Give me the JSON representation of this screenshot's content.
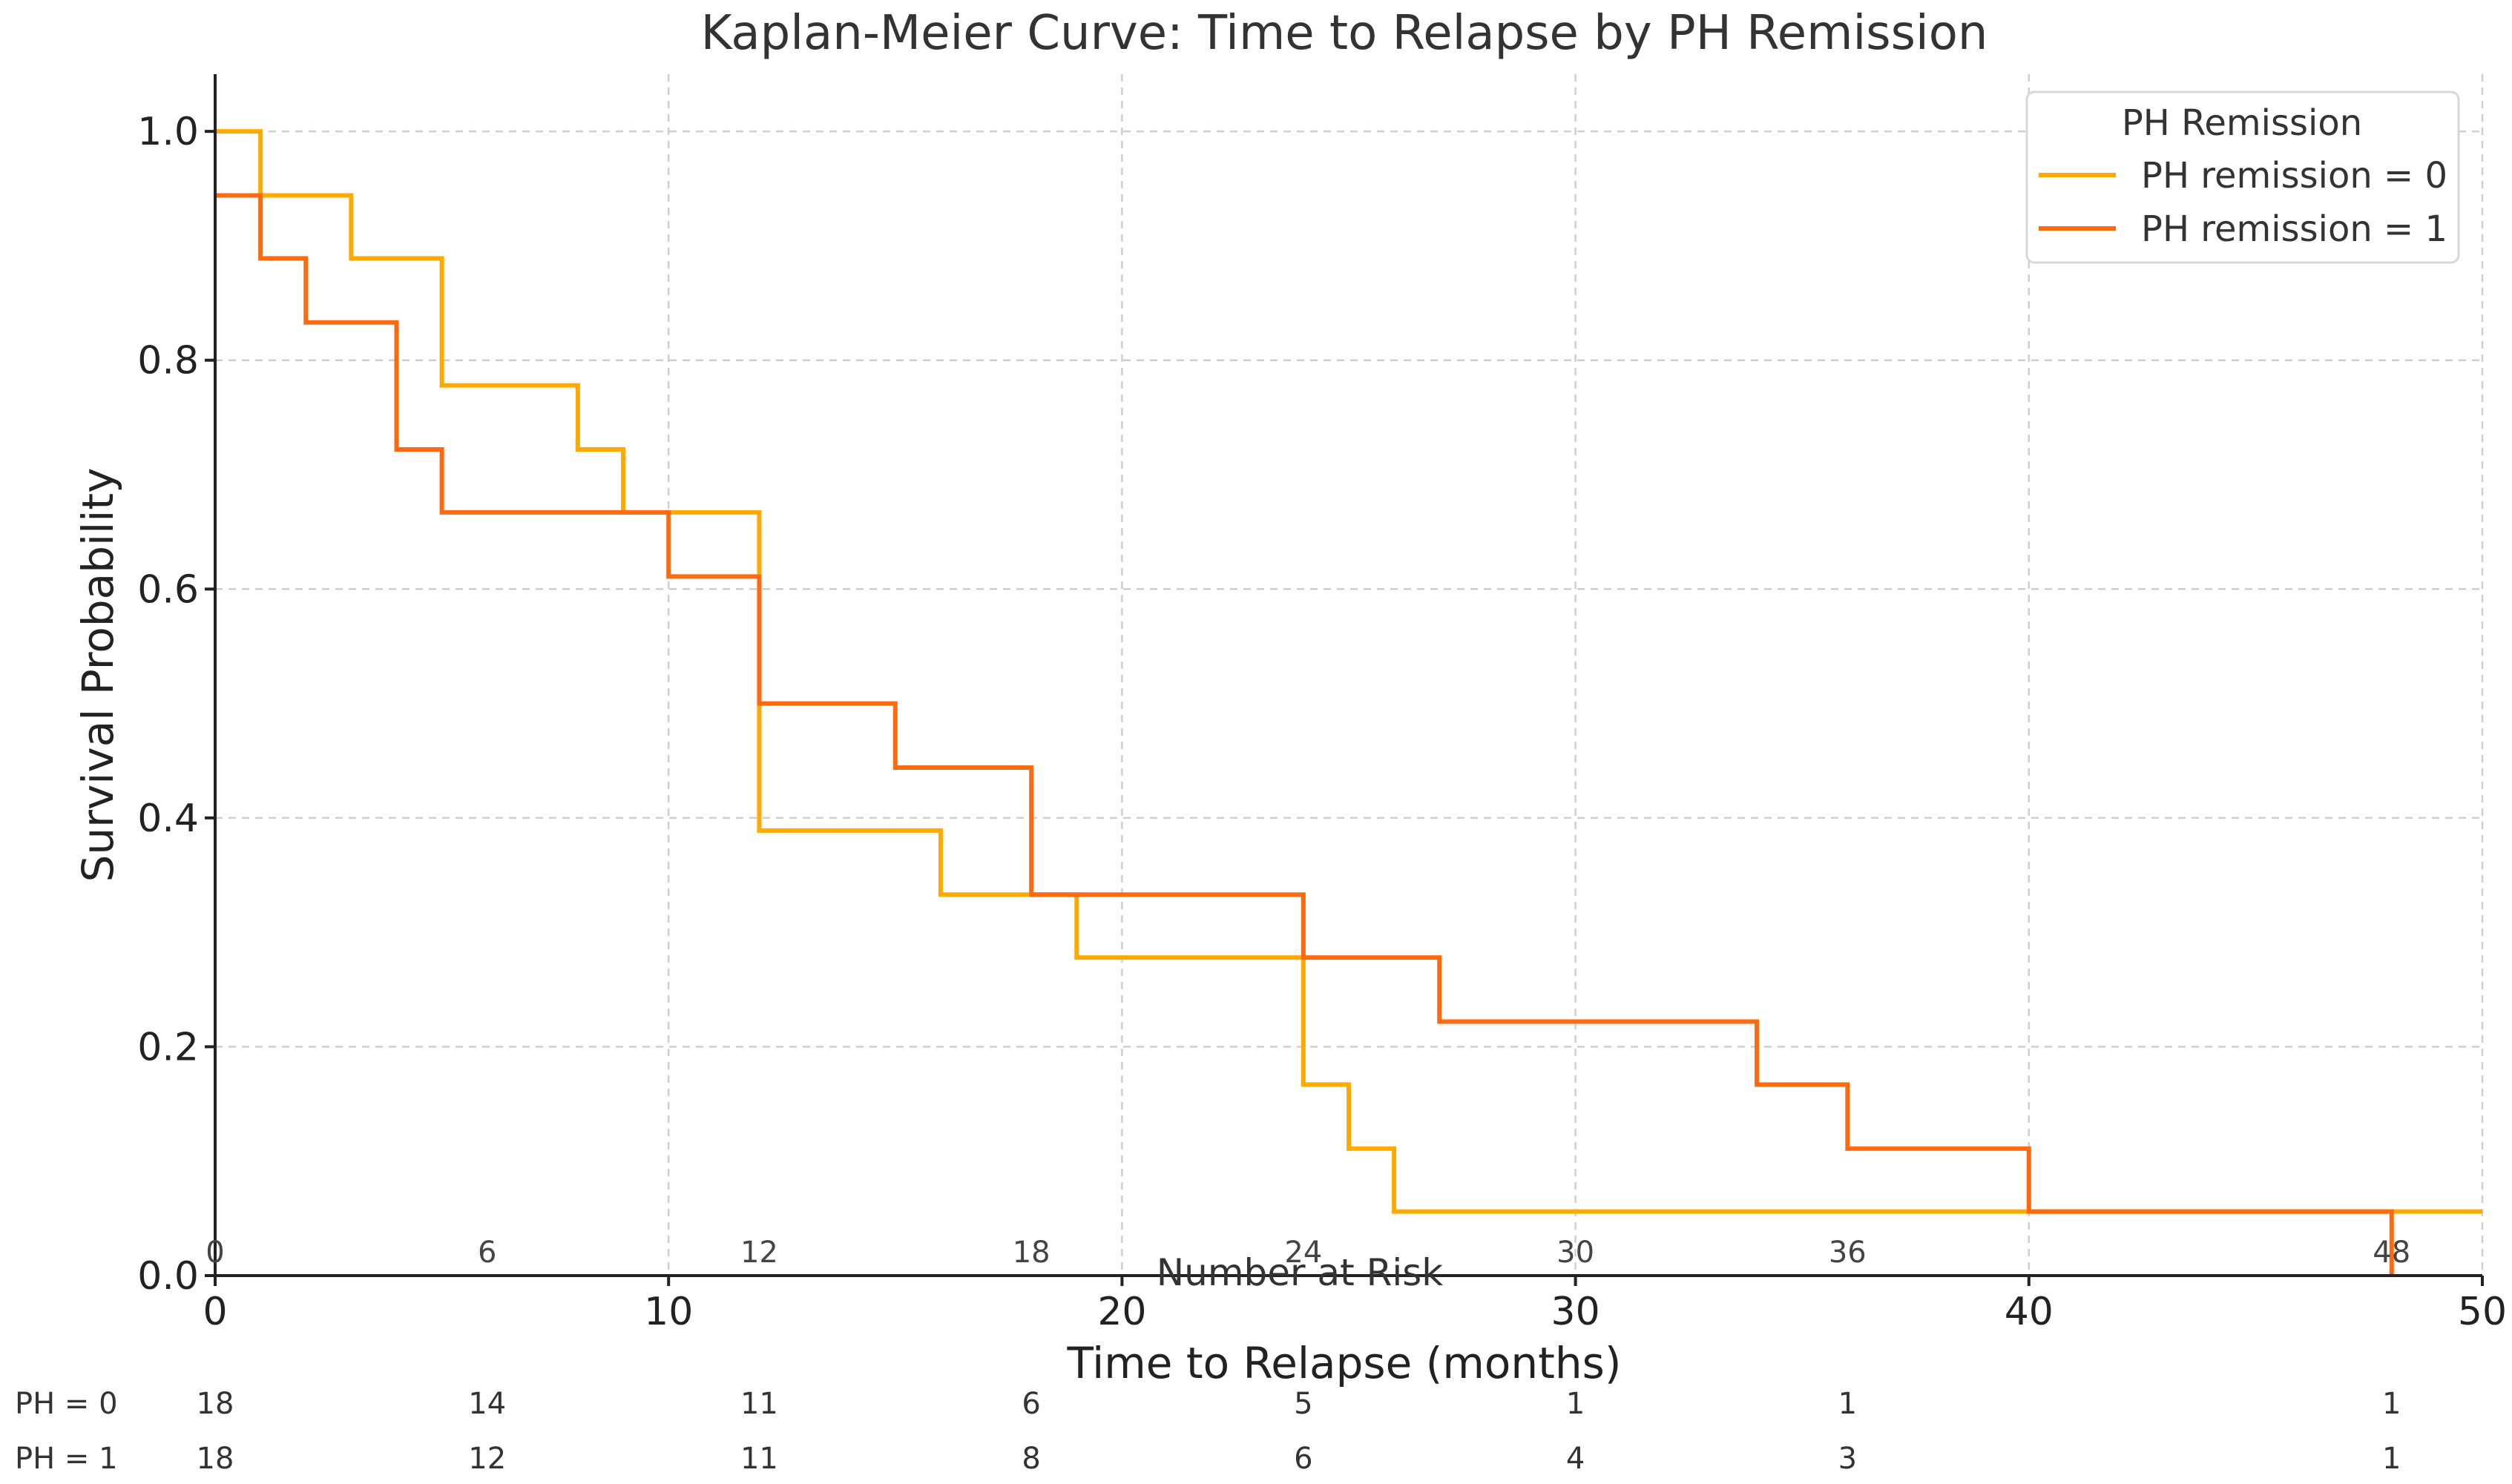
{
  "chart_data": {
    "type": "line",
    "step": true,
    "title": "Kaplan-Meier Curve: Time to Relapse by PH Remission",
    "xlabel": "Time to Relapse (months)",
    "ylabel": "Survival Probability",
    "xlim": [
      0,
      50
    ],
    "ylim": [
      0,
      1.05
    ],
    "xticks": [
      "0",
      "10",
      "20",
      "30",
      "40",
      "50"
    ],
    "xtick_values": [
      0,
      10,
      20,
      30,
      40,
      50
    ],
    "yticks": [
      "0.0",
      "0.2",
      "0.4",
      "0.6",
      "0.8",
      "1.0"
    ],
    "ytick_values": [
      0,
      0.2,
      0.4,
      0.6,
      0.8,
      1.0
    ],
    "grid": true,
    "legend": {
      "title": "PH Remission",
      "position": "top-right"
    },
    "series": [
      {
        "name": "PH remission = 0",
        "color": "#FFAA00",
        "steps": [
          [
            0,
            1.0
          ],
          [
            1,
            0.944
          ],
          [
            3,
            0.889
          ],
          [
            5,
            0.778
          ],
          [
            8,
            0.722
          ],
          [
            9,
            0.667
          ],
          [
            12,
            0.389
          ],
          [
            16,
            0.333
          ],
          [
            19,
            0.278
          ],
          [
            24,
            0.167
          ],
          [
            25,
            0.111
          ],
          [
            26,
            0.056
          ],
          [
            50,
            0.056
          ]
        ]
      },
      {
        "name": "PH remission = 1",
        "color": "#FF6A10",
        "steps": [
          [
            0,
            0.944
          ],
          [
            1,
            0.889
          ],
          [
            2,
            0.833
          ],
          [
            4,
            0.722
          ],
          [
            5,
            0.667
          ],
          [
            10,
            0.611
          ],
          [
            12,
            0.5
          ],
          [
            15,
            0.444
          ],
          [
            18,
            0.333
          ],
          [
            24,
            0.278
          ],
          [
            27,
            0.222
          ],
          [
            34,
            0.167
          ],
          [
            36,
            0.111
          ],
          [
            40,
            0.056
          ],
          [
            48,
            0.0
          ]
        ]
      }
    ],
    "risk_table": {
      "title": "Number at Risk",
      "times": [
        "0",
        "6",
        "12",
        "18",
        "24",
        "30",
        "36",
        "48"
      ],
      "time_values": [
        0,
        6,
        12,
        18,
        24,
        30,
        36,
        48
      ],
      "rows": [
        {
          "label": "PH = 0",
          "values": [
            "18",
            "14",
            "11",
            "6",
            "5",
            "1",
            "1",
            "1"
          ]
        },
        {
          "label": "PH = 1",
          "values": [
            "18",
            "12",
            "11",
            "8",
            "6",
            "4",
            "3",
            "1"
          ]
        }
      ]
    }
  }
}
